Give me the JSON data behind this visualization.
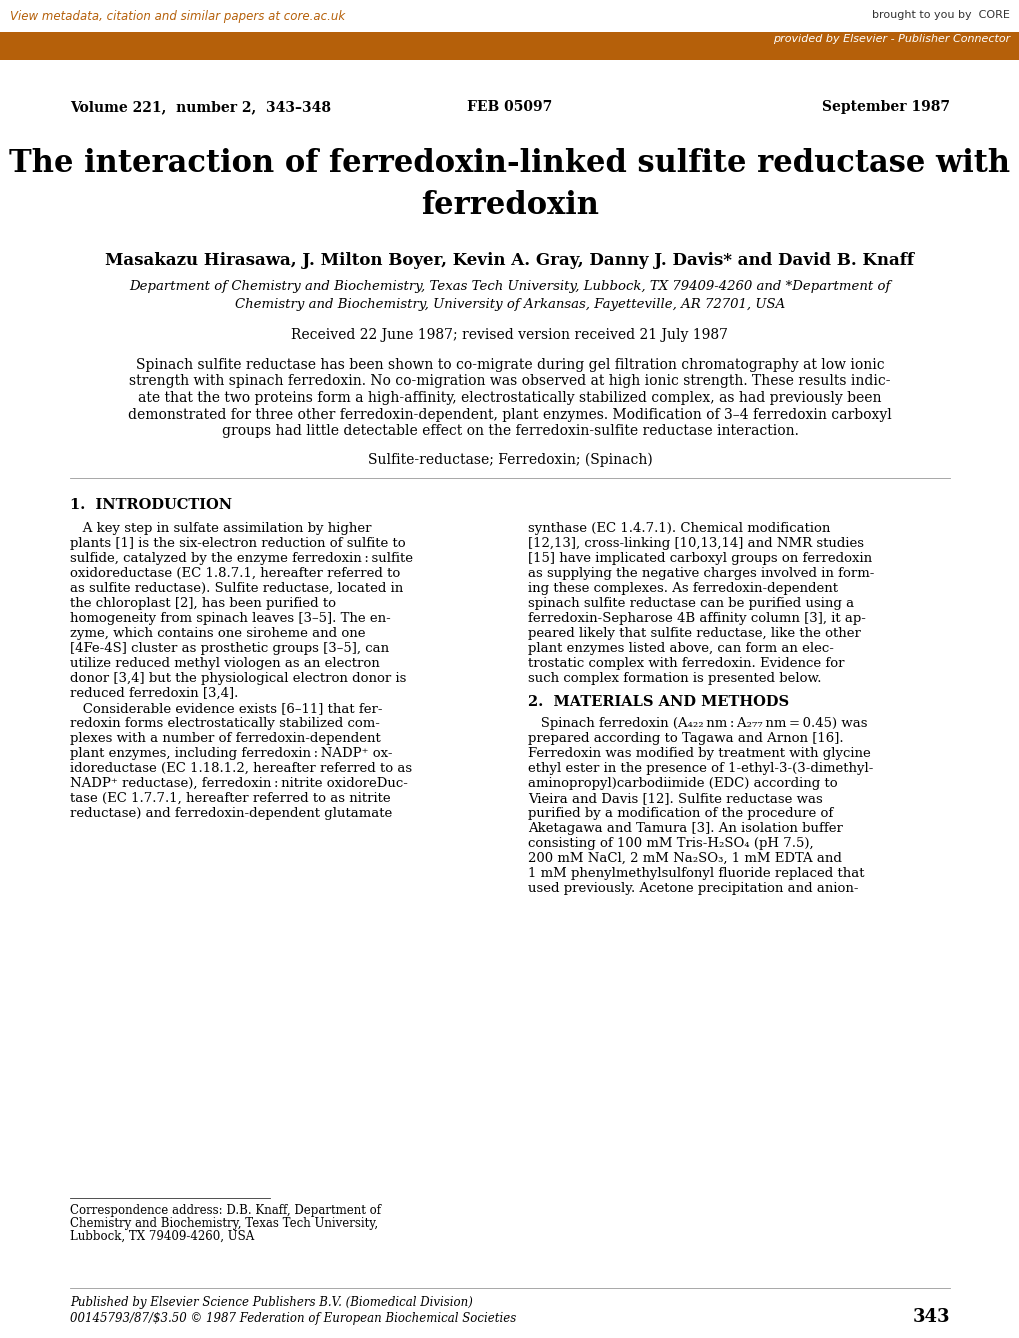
{
  "header_bar_color": "#b5600a",
  "header_top_text": "View metadata, citation and similar papers at core.ac.uk",
  "header_top_text_color": "#b5600a",
  "header_bar_text": "provided by Elsevier - Publisher Connector",
  "header_bar_text_color": "#ffffff",
  "core_text": "brought to you by  CORE",
  "volume_line": "Volume 221,  number 2,  343–348",
  "feb_line": "FEB 05097",
  "date_line": "September 1987",
  "title_line1": "The interaction of ferredoxin-linked sulfite reductase with",
  "title_line2": "ferredoxin",
  "authors": "Masakazu Hirasawa, J. Milton Boyer, Kevin A. Gray, Danny J. Davis* and David B. Knaff",
  "affiliation1": "Department of Chemistry and Biochemistry, Texas Tech University, Lubbock, TX 79409-4260 and *Department of",
  "affiliation2": "Chemistry and Biochemistry, University of Arkansas, Fayetteville, AR 72701, USA",
  "received": "Received 22 June 1987; revised version received 21 July 1987",
  "abstract_lines": [
    "Spinach sulfite reductase has been shown to co-migrate during gel filtration chromatography at low ionic",
    "strength with spinach ferredoxin. No co-migration was observed at high ionic strength. These results indic-",
    "ate that the two proteins form a high-affinity, electrostatically stabilized complex, as had previously been",
    "demonstrated for three other ferredoxin-dependent, plant enzymes. Modification of 3–4 ferredoxin carboxyl",
    "groups had little detectable effect on the ferredoxin-sulfite reductase interaction."
  ],
  "keywords": "Sulfite-reductase; Ferredoxin; (Spinach)",
  "section1_title": "1.  INTRODUCTION",
  "section1_col1_lines": [
    "   A key step in sulfate assimilation by higher",
    "plants [1] is the six-electron reduction of sulfite to",
    "sulfide, catalyzed by the enzyme ferredoxin : sulfite",
    "oxidoreductase (EC 1.8.7.1, hereafter referred to",
    "as sulfite reductase). Sulfite reductase, located in",
    "the chloroplast [2], has been purified to",
    "homogeneity from spinach leaves [3–5]. The en-",
    "zyme, which contains one siroheme and one",
    "[4Fe-4S] cluster as prosthetic groups [3–5], can",
    "utilize reduced methyl viologen as an electron",
    "donor [3,4] but the physiological electron donor is",
    "reduced ferredoxin [3,4].",
    "   Considerable evidence exists [6–11] that fer-",
    "redoxin forms electrostatically stabilized com-",
    "plexes with a number of ferredoxin-dependent",
    "plant enzymes, including ferredoxin : NADP⁺ ox-",
    "idoreductase (EC 1.18.1.2, hereafter referred to as",
    "NADP⁺ reductase), ferredoxin : nitrite oxidoreDuc-",
    "tase (EC 1.7.7.1, hereafter referred to as nitrite",
    "reductase) and ferredoxin-dependent glutamate"
  ],
  "section1_col1_footnote_lines": [
    "Correspondence address: D.B. Knaff, Department of",
    "Chemistry and Biochemistry, Texas Tech University,",
    "Lubbock, TX 79409-4260, USA"
  ],
  "section1_col2_lines": [
    "synthase (EC 1.4.7.1). Chemical modification",
    "[12,13], cross-linking [10,13,14] and NMR studies",
    "[15] have implicated carboxyl groups on ferredoxin",
    "as supplying the negative charges involved in form-",
    "ing these complexes. As ferredoxin-dependent",
    "spinach sulfite reductase can be purified using a",
    "ferredoxin-Sepharose 4B affinity column [3], it ap-",
    "peared likely that sulfite reductase, like the other",
    "plant enzymes listed above, can form an elec-",
    "trostatic complex with ferredoxin. Evidence for",
    "such complex formation is presented below."
  ],
  "section2_title": "2.  MATERIALS AND METHODS",
  "section2_col2_lines": [
    "   Spinach ferredoxin (A₄₂₂ nm : A₂₇₇ nm = 0.45) was",
    "prepared according to Tagawa and Arnon [16].",
    "Ferredoxin was modified by treatment with glycine",
    "ethyl ester in the presence of 1-ethyl-3-(3-dimethyl-",
    "aminopropyl)carbodiimide (EDC) according to",
    "Vieira and Davis [12]. Sulfite reductase was",
    "purified by a modification of the procedure of",
    "Aketagawa and Tamura [3]. An isolation buffer",
    "consisting of 100 mM Tris-H₂SO₄ (pH 7.5),",
    "200 mM NaCl, 2 mM Na₂SO₃, 1 mM EDTA and",
    "1 mM phenylmethylsulfonyl fluoride replaced that",
    "used previously. Acetone precipitation and anion-"
  ],
  "footer_line1": "Published by Elsevier Science Publishers B.V. (Biomedical Division)",
  "footer_line2": "00145793/87/$3.50 © 1987 Federation of European Biochemical Societies",
  "footer_page": "343",
  "bg_color": "#ffffff",
  "text_color": "#000000"
}
